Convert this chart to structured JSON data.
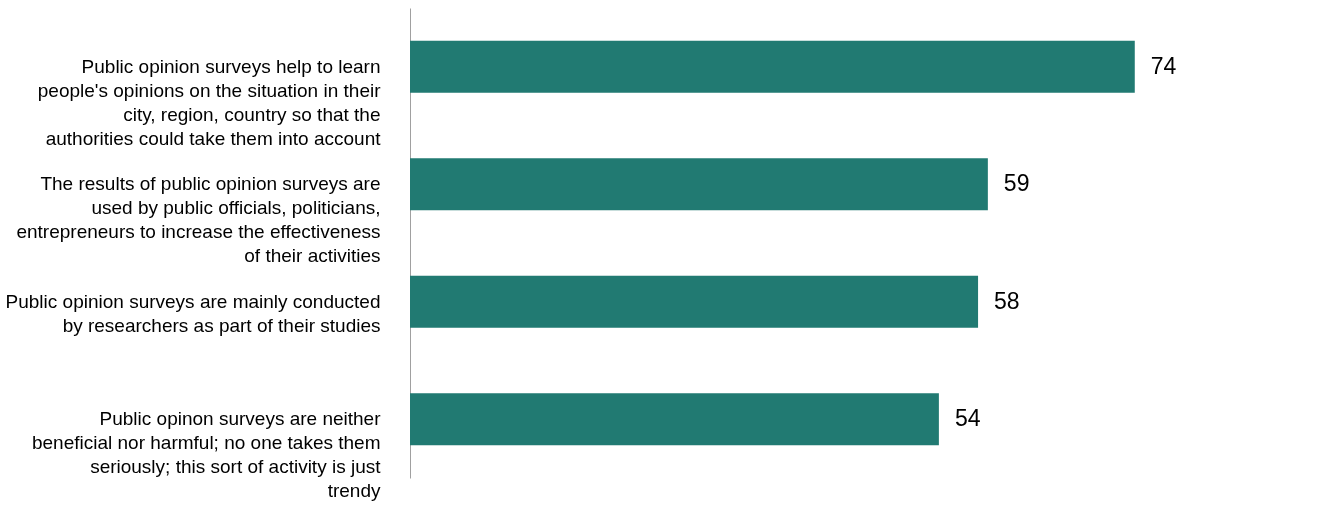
{
  "chart_data": {
    "type": "bar",
    "orientation": "horizontal",
    "data_labels": true,
    "categories": [
      "Public opinion surveys help to learn people's opinions on the situation in their city, region, country so that the authorities could take them into account",
      "The results of public opinion surveys are used by public officials, politicians, entrepreneurs to increase the effectiveness of their activities",
      "Public opinion surveys are mainly conducted by researchers as part of their studies",
      "Public opinon surveys are neither beneficial nor harmful; no one takes them seriously; this sort of activity is just trendy"
    ],
    "values": [
      74,
      59,
      58,
      54
    ],
    "color": "#217a72"
  }
}
